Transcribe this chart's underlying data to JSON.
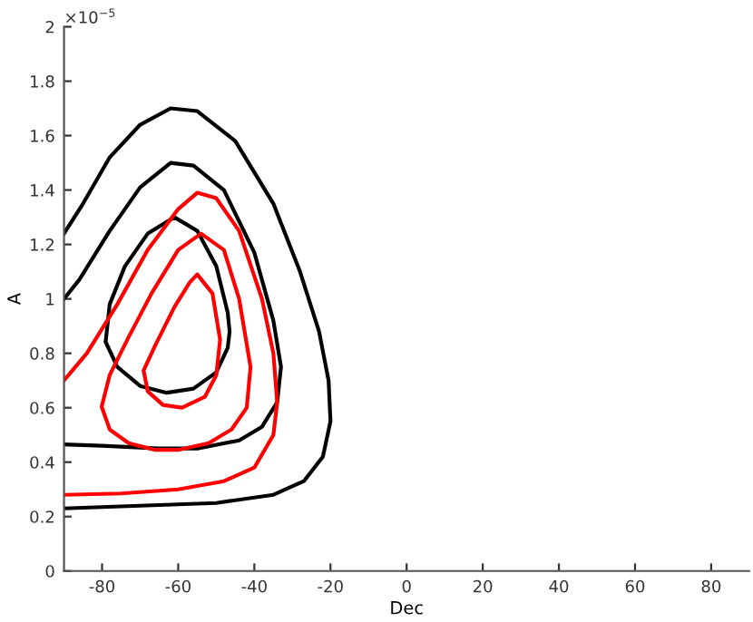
{
  "chart_data": {
    "type": "line",
    "xlabel": "Dec",
    "ylabel": "A",
    "annotations": [
      "×10$^{−5}$"
    ],
    "xlim": [
      -90,
      90
    ],
    "xticks": [
      -80,
      -60,
      -40,
      -20,
      0,
      20,
      40,
      60,
      80
    ],
    "ylim": [
      0,
      2
    ],
    "yticks": [
      0,
      0.2,
      0.4,
      0.6,
      0.8,
      1,
      1.2,
      1.4,
      1.6,
      1.8,
      2
    ],
    "grid": false,
    "line_style": "solid",
    "series": [
      {
        "color": "#000000",
        "x": [
          -90,
          -85,
          -78,
          -70,
          -62,
          -55,
          -45,
          -35,
          -28,
          -23,
          -20.5,
          -20,
          -22,
          -27,
          -35,
          -50,
          -70,
          -90
        ],
        "values": [
          1.24,
          1.35,
          1.52,
          1.64,
          1.7,
          1.69,
          1.58,
          1.35,
          1.1,
          0.88,
          0.7,
          0.55,
          0.42,
          0.33,
          0.28,
          0.25,
          0.24,
          0.23
        ]
      },
      {
        "color": "#000000",
        "x": [
          -90,
          -86,
          -78,
          -70,
          -62,
          -56,
          -48,
          -40,
          -35,
          -33,
          -34,
          -38,
          -44,
          -55,
          -65,
          -80,
          -90
        ],
        "values": [
          1.0,
          1.07,
          1.25,
          1.41,
          1.5,
          1.49,
          1.4,
          1.17,
          0.92,
          0.75,
          0.62,
          0.53,
          0.48,
          0.45,
          0.45,
          0.46,
          0.465
        ]
      },
      {
        "color": "#000000",
        "x": [
          -79,
          -78,
          -74,
          -68,
          -61,
          -55,
          -50,
          -47,
          -46.5,
          -47,
          -50,
          -56,
          -63,
          -70,
          -76,
          -79
        ],
        "values": [
          0.85,
          0.98,
          1.12,
          1.24,
          1.3,
          1.25,
          1.12,
          0.95,
          0.88,
          0.82,
          0.73,
          0.67,
          0.655,
          0.68,
          0.75,
          0.84
        ]
      },
      {
        "color": "#ff0000",
        "x": [
          -90,
          -84,
          -76,
          -68,
          -60,
          -55,
          -50,
          -44,
          -38,
          -35,
          -34,
          -35,
          -40,
          -48,
          -60,
          -75,
          -90
        ],
        "values": [
          0.7,
          0.8,
          0.98,
          1.18,
          1.33,
          1.39,
          1.37,
          1.25,
          1.0,
          0.8,
          0.62,
          0.5,
          0.38,
          0.33,
          0.3,
          0.285,
          0.28
        ]
      },
      {
        "color": "#ff0000",
        "x": [
          -80,
          -78,
          -73,
          -66,
          -60,
          -52,
          -46,
          -42,
          -41,
          -44,
          -48,
          -54,
          -60,
          -67,
          -73,
          -78,
          -80
        ],
        "values": [
          0.6,
          0.52,
          0.47,
          0.445,
          0.445,
          0.47,
          0.52,
          0.6,
          0.75,
          1.0,
          1.18,
          1.24,
          1.18,
          1.02,
          0.86,
          0.72,
          0.61
        ]
      },
      {
        "color": "#ff0000",
        "x": [
          -69,
          -68,
          -64,
          -59,
          -53,
          -50,
          -49,
          -51,
          -55,
          -57,
          -61,
          -66,
          -69
        ],
        "values": [
          0.73,
          0.66,
          0.61,
          0.6,
          0.64,
          0.72,
          0.85,
          1.02,
          1.09,
          1.06,
          0.97,
          0.83,
          0.74
        ]
      }
    ]
  }
}
